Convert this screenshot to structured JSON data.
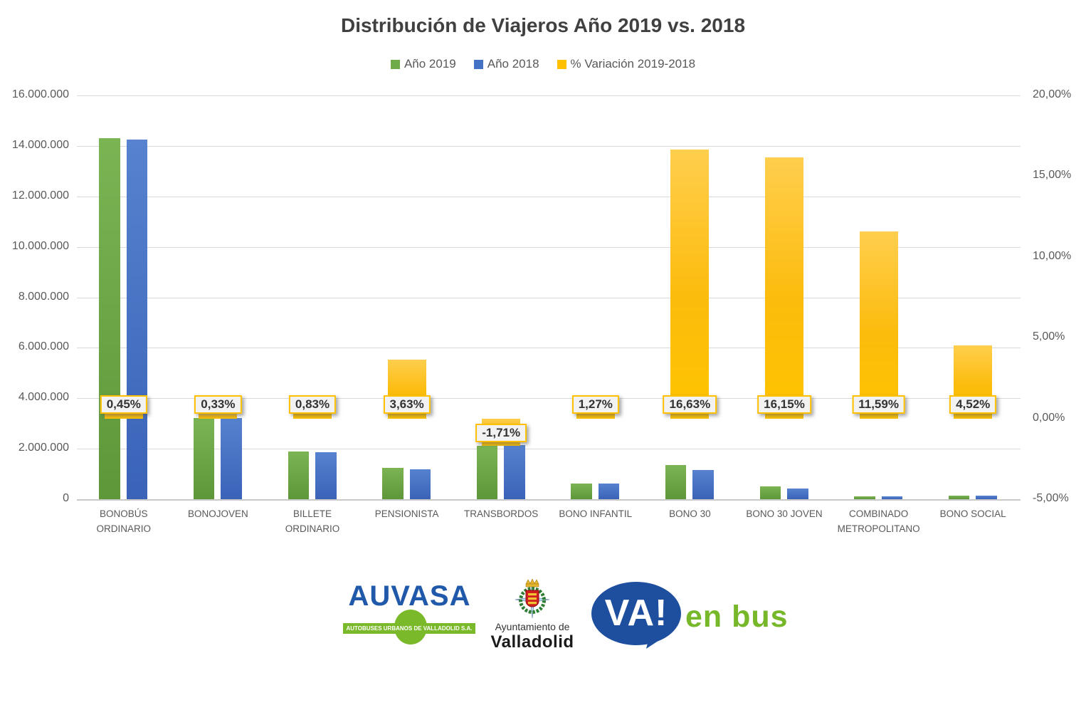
{
  "title": "Distribución de Viajeros Año 2019 vs. 2018",
  "legend": [
    {
      "label": "Año 2019",
      "color": "#6fac49"
    },
    {
      "label": "Año 2018",
      "color": "#4472c4"
    },
    {
      "label": "% Variación 2019-2018",
      "color": "#ffc000"
    }
  ],
  "chart_data": {
    "type": "bar",
    "categories": [
      "BONOBÚS ORDINARIO",
      "BONOJOVEN",
      "BILLETE ORDINARIO",
      "PENSIONISTA",
      "TRANSBORDOS",
      "BONO INFANTIL",
      "BONO 30",
      "BONO 30 JOVEN",
      "COMBINADO METROPOLITANO",
      "BONO SOCIAL"
    ],
    "series": [
      {
        "name": "Año 2019",
        "axis": "primary",
        "color": "#6fac49",
        "values": [
          14310000,
          3215000,
          1891000,
          1233000,
          2113000,
          621000,
          1353000,
          508000,
          119000,
          136000
        ]
      },
      {
        "name": "Año 2018",
        "axis": "primary",
        "color": "#4472c4",
        "values": [
          14246000,
          3205000,
          1875000,
          1190000,
          2150000,
          613000,
          1160000,
          437000,
          107000,
          130000
        ]
      },
      {
        "name": "% Variación 2019-2018",
        "axis": "secondary",
        "color": "#ffc000",
        "values": [
          0.45,
          0.33,
          0.83,
          3.63,
          -1.71,
          1.27,
          16.63,
          16.15,
          11.59,
          4.52
        ]
      }
    ],
    "variation_labels": [
      "0,45%",
      "0,33%",
      "0,83%",
      "3,63%",
      "-1,71%",
      "1,27%",
      "16,63%",
      "16,15%",
      "11,59%",
      "4,52%"
    ],
    "left_axis": {
      "min": 0,
      "max": 16000000,
      "step": 2000000,
      "labels": [
        "16.000.000",
        "14.000.000",
        "12.000.000",
        "10.000.000",
        "8.000.000",
        "6.000.000",
        "4.000.000",
        "2.000.000",
        "0"
      ]
    },
    "right_axis": {
      "min": -5,
      "max": 20,
      "step": 5,
      "labels": [
        "20,00%",
        "15,00%",
        "10,00%",
        "5,00%",
        "0,00%",
        "-5,00%"
      ]
    },
    "grid": true,
    "legend_position": "top"
  },
  "footer": {
    "auvasa_name": "AUVASA",
    "auvasa_tagline": "AUTOBUSES URBANOS DE VALLADOLID S.A.",
    "ayuntamiento_line1": "Ayuntamiento de",
    "ayuntamiento_line2": "Valladolid",
    "va_bubble": "VA!",
    "va_suffix": "en bus"
  }
}
